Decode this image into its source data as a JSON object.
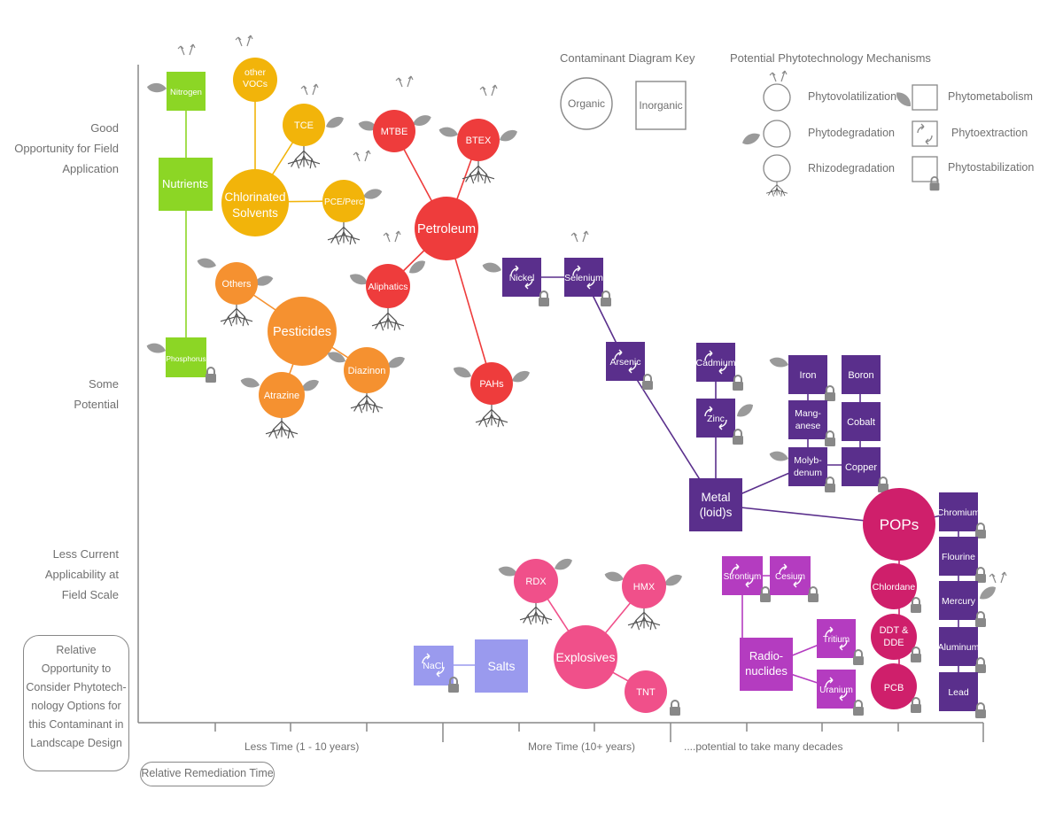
{
  "colors": {
    "nutrients": "#8cd625",
    "chlorinated": "#f2b40a",
    "pesticides": "#f59130",
    "petroleum": "#ee3c3c",
    "metals": "#5a2f8c",
    "radionuclides": "#b43cc0",
    "pops": "#cf1f6b",
    "explosives": "#f0508a",
    "salts": "#9a9aee",
    "axis": "#888888",
    "root": "#555555",
    "leaf": "#9a9a9a"
  },
  "y_axis": {
    "good": "Good\nOpportunity for Field\nApplication",
    "some": "Some\nPotential",
    "less": "Less Current\nApplicability at\nField Scale",
    "box": "Relative\nOpportunity to\nConsider Phytotech-\nnology Options for\nthis Contaminant in\nLandscape Design"
  },
  "x_axis": {
    "less_time": "Less Time (1 - 10 years)",
    "more_time": "More Time  (10+ years)",
    "decades": "....potential to take many decades",
    "box": "Relative Remediation Time"
  },
  "key": {
    "title": "Contaminant Diagram Key",
    "organic": "Organic",
    "inorganic": "Inorganic"
  },
  "mechanisms": {
    "title": "Potential Phytotechnology Mechanisms",
    "phytovolatilization": "Phytovolatilization",
    "phytodegradation": "Phytodegradation",
    "rhizodegradation": "Rhizodegradation",
    "phytometabolism": "Phytometabolism",
    "phytoextraction": "Phytoextraction",
    "phytostabilization": "Phytostabilization"
  },
  "nodes": {
    "nitrogen": "Nitrogen",
    "nutrients": "Nutrients",
    "phosphorus": "Phosphorus",
    "other_vocs": "other\nVOCs",
    "tce": "TCE",
    "chlorinated": "Chlorinated\nSolvents",
    "pce": "PCE/Perc",
    "others": "Others",
    "pesticides": "Pesticides",
    "diazinon": "Diazinon",
    "atrazine": "Atrazine",
    "mtbe": "MTBE",
    "btex": "BTEX",
    "petroleum": "Petroleum",
    "aliphatics": "Aliphatics",
    "pahs": "PAHs",
    "nickel": "Nickel",
    "selenium": "Selenium",
    "arsenic": "Arsenic",
    "cadmium": "Cadmium",
    "zinc": "Zinc",
    "iron": "Iron",
    "boron": "Boron",
    "manganese": "Mang-\nanese",
    "cobalt": "Cobalt",
    "molybdenum": "Molyb-\ndenum",
    "copper": "Copper",
    "metals": "Metal\n(loid)s",
    "pops": "POPs",
    "chromium": "Chromium",
    "flourine": "Flourine",
    "mercury": "Mercury",
    "aluminum": "Aluminum",
    "lead": "Lead",
    "chlordane": "Chlordane",
    "ddt": "DDT &\nDDE",
    "pcb": "PCB",
    "strontium": "Strontium",
    "cesium": "Cesium",
    "radionuclides": "Radio-\nnuclides",
    "tritium": "Tritium",
    "uranium": "Uranium",
    "rdx": "RDX",
    "hmx": "HMX",
    "explosives": "Explosives",
    "tnt": "TNT",
    "nacl": "NaCl",
    "salts": "Salts"
  }
}
